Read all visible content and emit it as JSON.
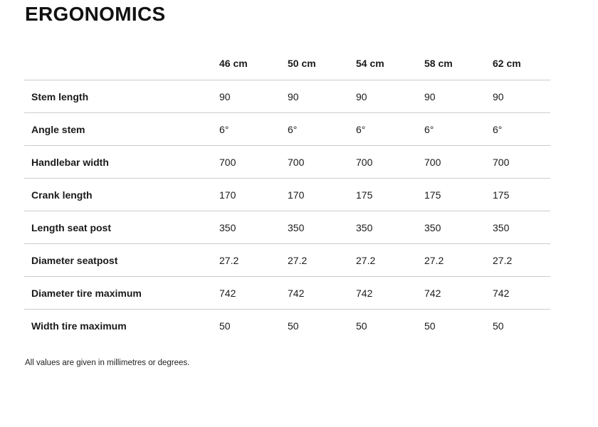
{
  "page": {
    "title": "ERGONOMICS",
    "footnote": "All values are given in millimetres or degrees."
  },
  "colors": {
    "text": "#1a1a1a",
    "title": "#111111",
    "divider": "#cccccc",
    "background": "#ffffff"
  },
  "table": {
    "columns": [
      "46 cm",
      "50 cm",
      "54 cm",
      "58 cm",
      "62 cm"
    ],
    "rows": [
      {
        "label": "Stem length",
        "values": [
          "90",
          "90",
          "90",
          "90",
          "90"
        ]
      },
      {
        "label": "Angle stem",
        "values": [
          "6°",
          "6°",
          "6°",
          "6°",
          "6°"
        ]
      },
      {
        "label": "Handlebar width",
        "values": [
          "700",
          "700",
          "700",
          "700",
          "700"
        ]
      },
      {
        "label": "Crank length",
        "values": [
          "170",
          "170",
          "175",
          "175",
          "175"
        ]
      },
      {
        "label": "Length seat post",
        "values": [
          "350",
          "350",
          "350",
          "350",
          "350"
        ]
      },
      {
        "label": "Diameter seatpost",
        "values": [
          "27.2",
          "27.2",
          "27.2",
          "27.2",
          "27.2"
        ]
      },
      {
        "label": "Diameter tire maximum",
        "values": [
          "742",
          "742",
          "742",
          "742",
          "742"
        ]
      },
      {
        "label": "Width tire maximum",
        "values": [
          "50",
          "50",
          "50",
          "50",
          "50"
        ]
      }
    ]
  }
}
